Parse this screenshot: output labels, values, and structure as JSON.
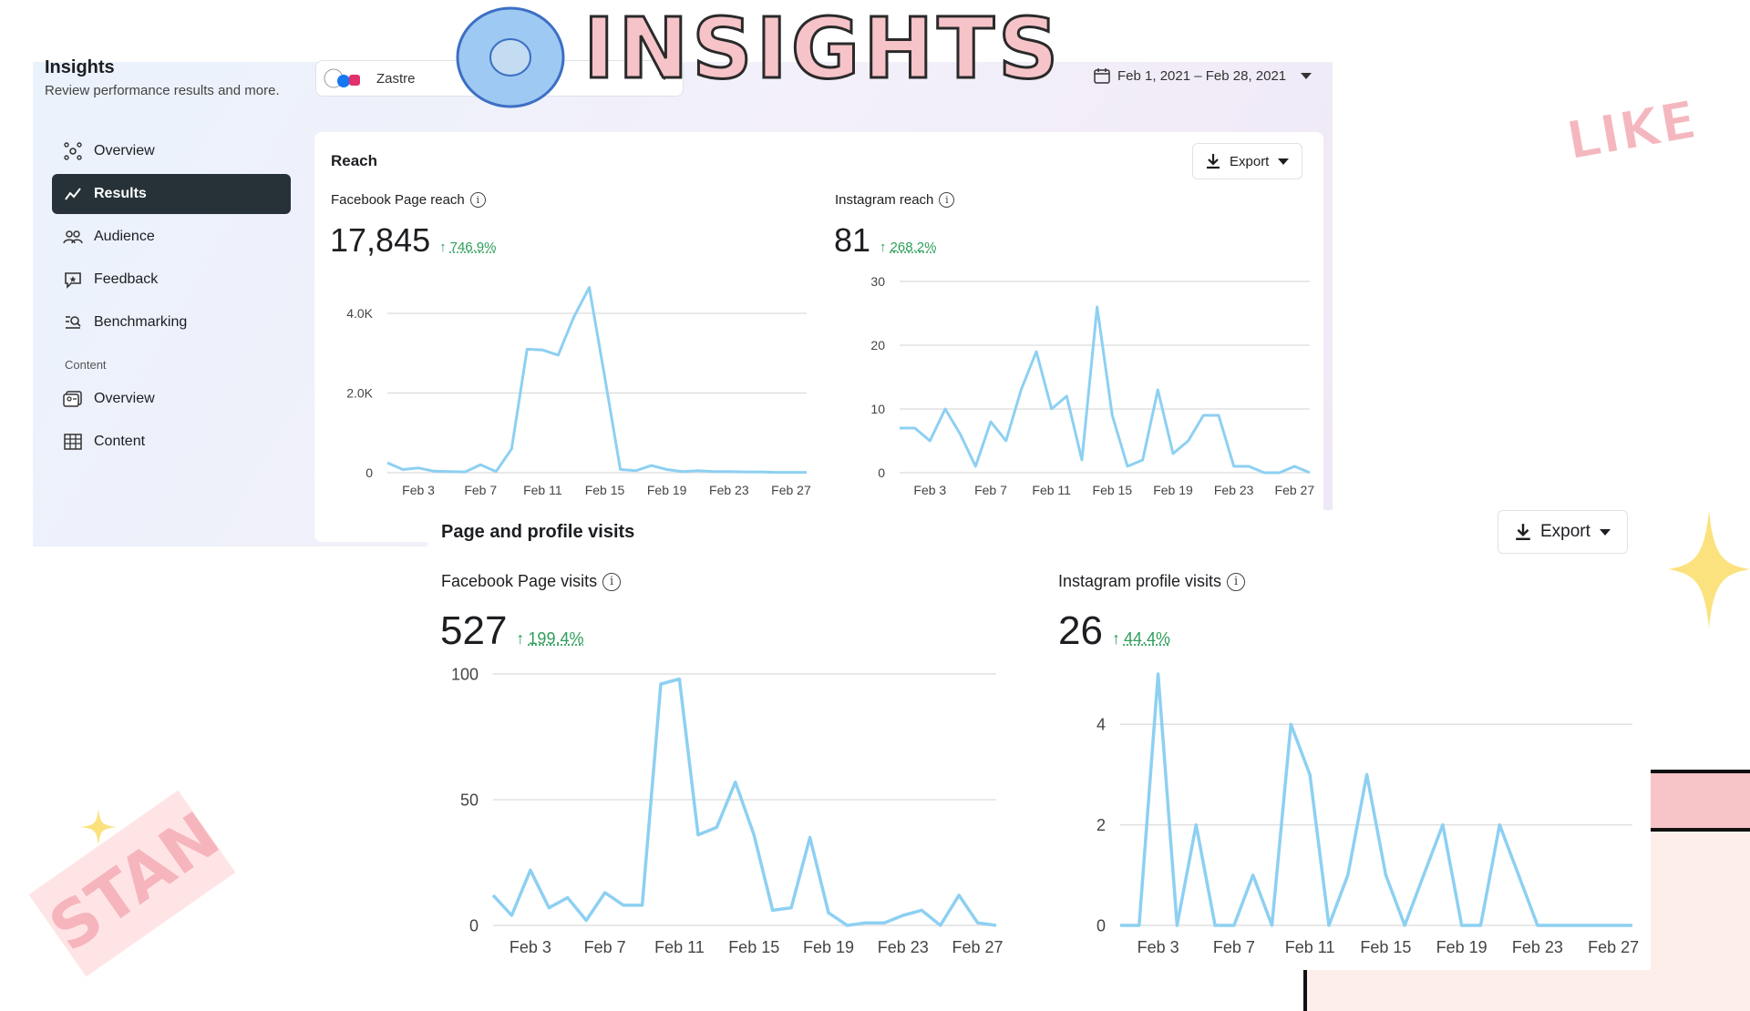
{
  "banner": {
    "title": "INSIGHTS",
    "sticker_like": "LIKE",
    "sticker_stan": "STAN"
  },
  "header": {
    "title": "Insights",
    "subtitle": "Review performance results and more.",
    "account": "Zastre",
    "date_range": "Feb 1, 2021 – Feb 28, 2021"
  },
  "sidebar": {
    "items": [
      {
        "label": "Overview",
        "icon": "overview-icon",
        "active": false
      },
      {
        "label": "Results",
        "icon": "results-icon",
        "active": true
      },
      {
        "label": "Audience",
        "icon": "audience-icon",
        "active": false
      },
      {
        "label": "Feedback",
        "icon": "feedback-icon",
        "active": false
      },
      {
        "label": "Benchmarking",
        "icon": "benchmarking-icon",
        "active": false
      }
    ],
    "section_label": "Content",
    "content_items": [
      {
        "label": "Overview",
        "icon": "content-overview-icon"
      },
      {
        "label": "Content",
        "icon": "content-table-icon"
      }
    ]
  },
  "reach": {
    "title": "Reach",
    "export_label": "Export",
    "facebook": {
      "label": "Facebook Page reach",
      "value": "17,845",
      "change": "746.9%"
    },
    "instagram": {
      "label": "Instagram reach",
      "value": "81",
      "change": "268.2%"
    }
  },
  "visits": {
    "title": "Page and profile visits",
    "export_label": "Export",
    "facebook": {
      "label": "Facebook Page visits",
      "value": "527",
      "change": "199.4%"
    },
    "instagram": {
      "label": "Instagram profile visits",
      "value": "26",
      "change": "44.4%"
    }
  },
  "colors": {
    "line": "#8dd0f2",
    "positive": "#2e9e5b",
    "active_nav": "#263238"
  },
  "chart_data": [
    {
      "id": "fb-reach",
      "type": "line",
      "title": "Facebook Page reach",
      "x_ticks": [
        "Feb 3",
        "Feb 7",
        "Feb 11",
        "Feb 15",
        "Feb 19",
        "Feb 23",
        "Feb 27"
      ],
      "x_tick_days": [
        3,
        7,
        11,
        15,
        19,
        23,
        27
      ],
      "y_ticks": [
        "0",
        "2.0K",
        "4.0K"
      ],
      "y_tick_values": [
        0,
        2000,
        4000
      ],
      "ylim": [
        0,
        4800
      ],
      "x": [
        1,
        2,
        3,
        4,
        5,
        6,
        7,
        8,
        9,
        10,
        11,
        12,
        13,
        14,
        15,
        16,
        17,
        18,
        19,
        20,
        21,
        22,
        23,
        24,
        25,
        26,
        27,
        28
      ],
      "values": [
        250,
        80,
        120,
        40,
        30,
        20,
        200,
        30,
        600,
        3100,
        3080,
        2950,
        3900,
        4650,
        2400,
        80,
        50,
        180,
        80,
        30,
        50,
        30,
        30,
        20,
        20,
        10,
        10,
        10
      ]
    },
    {
      "id": "ig-reach",
      "type": "line",
      "title": "Instagram reach",
      "x_ticks": [
        "Feb 3",
        "Feb 7",
        "Feb 11",
        "Feb 15",
        "Feb 19",
        "Feb 23",
        "Feb 27"
      ],
      "x_tick_days": [
        3,
        7,
        11,
        15,
        19,
        23,
        27
      ],
      "y_ticks": [
        "0",
        "10",
        "20",
        "30"
      ],
      "y_tick_values": [
        0,
        10,
        20,
        30
      ],
      "ylim": [
        0,
        30
      ],
      "x": [
        1,
        2,
        3,
        4,
        5,
        6,
        7,
        8,
        9,
        10,
        11,
        12,
        13,
        14,
        15,
        16,
        17,
        18,
        19,
        20,
        21,
        22,
        23,
        24,
        25,
        26,
        27,
        28
      ],
      "values": [
        7,
        7,
        5,
        10,
        6,
        1,
        8,
        5,
        13,
        19,
        10,
        12,
        2,
        26,
        9,
        1,
        2,
        13,
        3,
        5,
        9,
        9,
        1,
        1,
        0,
        0,
        1,
        0
      ]
    },
    {
      "id": "fb-visits",
      "type": "line",
      "title": "Facebook Page visits",
      "x_ticks": [
        "Feb 3",
        "Feb 7",
        "Feb 11",
        "Feb 15",
        "Feb 19",
        "Feb 23",
        "Feb 27"
      ],
      "x_tick_days": [
        3,
        7,
        11,
        15,
        19,
        23,
        27
      ],
      "y_ticks": [
        "0",
        "50",
        "100"
      ],
      "y_tick_values": [
        0,
        50,
        100
      ],
      "ylim": [
        0,
        100
      ],
      "x": [
        1,
        2,
        3,
        4,
        5,
        6,
        7,
        8,
        9,
        10,
        11,
        12,
        13,
        14,
        15,
        16,
        17,
        18,
        19,
        20,
        21,
        22,
        23,
        24,
        25,
        26,
        27,
        28
      ],
      "values": [
        12,
        4,
        22,
        7,
        11,
        2,
        13,
        8,
        8,
        96,
        98,
        36,
        39,
        57,
        36,
        6,
        7,
        35,
        5,
        0,
        1,
        1,
        4,
        6,
        0,
        12,
        1,
        0
      ]
    },
    {
      "id": "ig-visits",
      "type": "line",
      "title": "Instagram profile visits",
      "x_ticks": [
        "Feb 3",
        "Feb 7",
        "Feb 11",
        "Feb 15",
        "Feb 19",
        "Feb 23",
        "Feb 27"
      ],
      "x_tick_days": [
        3,
        7,
        11,
        15,
        19,
        23,
        27
      ],
      "y_ticks": [
        "0",
        "2",
        "4"
      ],
      "y_tick_values": [
        0,
        2,
        4
      ],
      "ylim": [
        0,
        5
      ],
      "x": [
        1,
        2,
        3,
        4,
        5,
        6,
        7,
        8,
        9,
        10,
        11,
        12,
        13,
        14,
        15,
        16,
        17,
        18,
        19,
        20,
        21,
        22,
        23,
        24,
        25,
        26,
        27,
        28
      ],
      "values": [
        0,
        0,
        5,
        0,
        2,
        0,
        0,
        1,
        0,
        4,
        3,
        0,
        1,
        3,
        1,
        0,
        1,
        2,
        0,
        0,
        2,
        1,
        0,
        0,
        0,
        0,
        0,
        0
      ]
    }
  ]
}
